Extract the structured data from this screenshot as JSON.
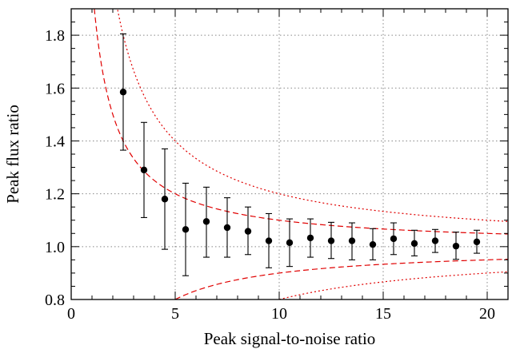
{
  "chart_data": {
    "type": "scatter",
    "title": "",
    "xlabel": "Peak signal-to-noise ratio",
    "ylabel": "Peak flux ratio",
    "xlim": [
      0,
      21
    ],
    "ylim": [
      0.8,
      1.9
    ],
    "x_ticks": [
      0,
      5,
      10,
      15,
      20
    ],
    "x_tick_labels": [
      "0",
      "5",
      "10",
      "15",
      "20"
    ],
    "y_ticks": [
      0.8,
      1.0,
      1.2,
      1.4,
      1.6,
      1.8
    ],
    "y_tick_labels": [
      "0.8",
      "1.0",
      "1.2",
      "1.4",
      "1.6",
      "1.8"
    ],
    "grid": true,
    "legend": "none",
    "colors": {
      "points": "#000000",
      "curves": "#e00000",
      "grid": "#888888"
    },
    "points": [
      {
        "x": 2.5,
        "y": 1.585,
        "yerr_low": 1.365,
        "yerr_high": 1.805
      },
      {
        "x": 3.5,
        "y": 1.29,
        "yerr_low": 1.11,
        "yerr_high": 1.47
      },
      {
        "x": 4.5,
        "y": 1.18,
        "yerr_low": 0.99,
        "yerr_high": 1.37
      },
      {
        "x": 5.5,
        "y": 1.065,
        "yerr_low": 0.89,
        "yerr_high": 1.24
      },
      {
        "x": 6.5,
        "y": 1.095,
        "yerr_low": 0.96,
        "yerr_high": 1.225
      },
      {
        "x": 7.5,
        "y": 1.072,
        "yerr_low": 0.96,
        "yerr_high": 1.185
      },
      {
        "x": 8.5,
        "y": 1.058,
        "yerr_low": 0.97,
        "yerr_high": 1.15
      },
      {
        "x": 9.5,
        "y": 1.022,
        "yerr_low": 0.92,
        "yerr_high": 1.125
      },
      {
        "x": 10.5,
        "y": 1.015,
        "yerr_low": 0.925,
        "yerr_high": 1.105
      },
      {
        "x": 11.5,
        "y": 1.033,
        "yerr_low": 0.96,
        "yerr_high": 1.105
      },
      {
        "x": 12.5,
        "y": 1.022,
        "yerr_low": 0.955,
        "yerr_high": 1.092
      },
      {
        "x": 13.5,
        "y": 1.022,
        "yerr_low": 0.95,
        "yerr_high": 1.09
      },
      {
        "x": 14.5,
        "y": 1.008,
        "yerr_low": 0.95,
        "yerr_high": 1.068
      },
      {
        "x": 15.5,
        "y": 1.03,
        "yerr_low": 0.97,
        "yerr_high": 1.09
      },
      {
        "x": 16.5,
        "y": 1.012,
        "yerr_low": 0.965,
        "yerr_high": 1.062
      },
      {
        "x": 17.5,
        "y": 1.022,
        "yerr_low": 0.978,
        "yerr_high": 1.065
      },
      {
        "x": 18.5,
        "y": 1.002,
        "yerr_low": 0.952,
        "yerr_high": 1.055
      },
      {
        "x": 19.5,
        "y": 1.018,
        "yerr_low": 0.975,
        "yerr_high": 1.062
      }
    ],
    "curves": [
      {
        "style": "dashed",
        "function": "1 + 1/x",
        "x_range": [
          1.0,
          21
        ]
      },
      {
        "style": "dashed",
        "function": "1 - 1/x",
        "x_range": [
          5.0,
          21
        ]
      },
      {
        "style": "dotted",
        "function": "1 + 2/x",
        "x_range": [
          2.0,
          21
        ]
      },
      {
        "style": "dotted",
        "function": "1 - 2/x",
        "x_range": [
          10.0,
          21
        ]
      }
    ]
  }
}
